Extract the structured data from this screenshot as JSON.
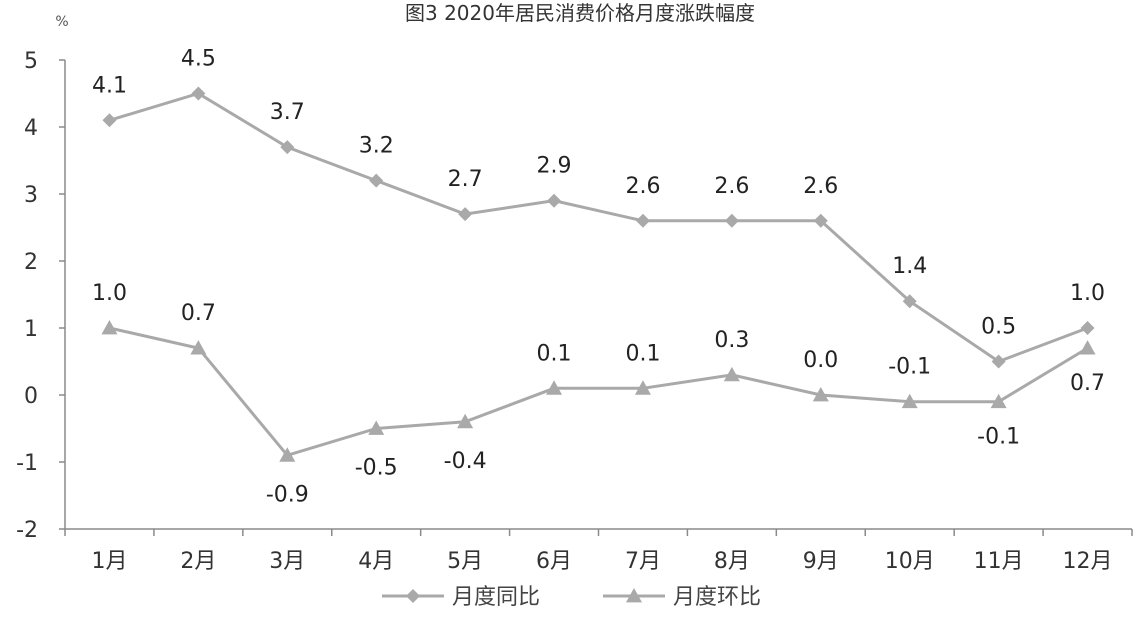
{
  "chart_data": {
    "type": "line",
    "title": "图3 2020年居民消费价格月度涨跌幅度",
    "unit": "%",
    "categories": [
      "1月",
      "2月",
      "3月",
      "4月",
      "5月",
      "6月",
      "7月",
      "8月",
      "9月",
      "10月",
      "11月",
      "12月"
    ],
    "ylim": [
      -2,
      5
    ],
    "yticks": [
      "-2",
      "-1",
      "0",
      "1",
      "2",
      "3",
      "4",
      "5"
    ],
    "grid": false,
    "legend": "bottom",
    "series": [
      {
        "name": "月度同比",
        "marker": "diamond",
        "color": "#a9a9a9",
        "values": [
          4.1,
          4.5,
          3.7,
          3.2,
          2.7,
          2.9,
          2.6,
          2.6,
          2.6,
          1.4,
          0.5,
          1.0
        ],
        "labels": [
          "4.1",
          "4.5",
          "3.7",
          "3.2",
          "2.7",
          "2.9",
          "2.6",
          "2.6",
          "2.6",
          "1.4",
          "0.5",
          "1.0"
        ]
      },
      {
        "name": "月度环比",
        "marker": "triangle",
        "color": "#a9a9a9",
        "values": [
          1.0,
          0.7,
          -0.9,
          -0.5,
          -0.4,
          0.1,
          0.1,
          0.3,
          0.0,
          -0.1,
          -0.1,
          0.7
        ],
        "labels": [
          "1.0",
          "0.7",
          "-0.9",
          "-0.5",
          "-0.4",
          "0.1",
          "0.1",
          "0.3",
          "0.0",
          "-0.1",
          "-0.1",
          "0.7"
        ]
      }
    ]
  }
}
